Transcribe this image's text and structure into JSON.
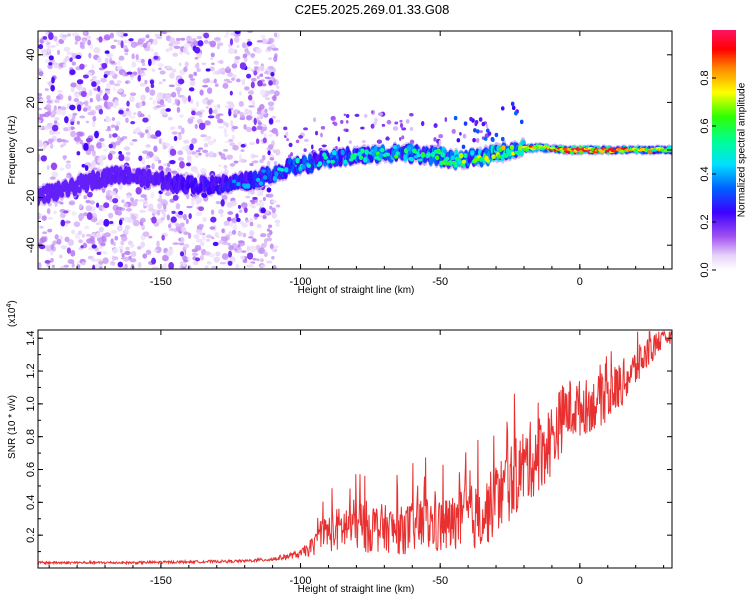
{
  "title": "C2E5.2025.269.01.33.G08",
  "chart_data": [
    {
      "type": "heatmap",
      "name": "spectrogram",
      "title": "C2E5.2025.269.01.33.G08",
      "xlabel": "Height of straight line (km)",
      "ylabel": "Frequency (Hz)",
      "xlim": [
        -194,
        33
      ],
      "ylim": [
        -50,
        50
      ],
      "xticks": [
        -150,
        -100,
        -50,
        0
      ],
      "yticks": [
        -40,
        -20,
        0,
        20,
        40
      ],
      "colorbar": {
        "label": "Normalized spectral amplitude",
        "range": [
          0.0,
          1.0
        ],
        "ticks": [
          "0.0",
          "0.2",
          "0.4",
          "0.6",
          "0.8"
        ],
        "colormap": [
          "#ffffff",
          "#d8b8f4",
          "#8a2be2",
          "#5a00f0",
          "#1020ff",
          "#00d8ff",
          "#00ff80",
          "#40ff00",
          "#ffff00",
          "#ff8000",
          "#ff0000",
          "#ff1060"
        ]
      },
      "ridge": {
        "x": [
          -194,
          -185,
          -175,
          -165,
          -155,
          -145,
          -135,
          -125,
          -115,
          -105,
          -95,
          -85,
          -75,
          -65,
          -55,
          -45,
          -35,
          -25,
          -15,
          -5,
          5,
          15,
          25,
          33
        ],
        "frequency": [
          -19,
          -17,
          -13,
          -10,
          -12,
          -14,
          -15,
          -14,
          -12,
          -8,
          -5,
          -3,
          -2,
          -1,
          -2,
          -4,
          -3,
          0,
          1,
          0,
          0,
          0,
          0,
          0
        ],
        "peak_amplitude": [
          0.2,
          0.18,
          0.2,
          0.22,
          0.22,
          0.25,
          0.3,
          0.35,
          0.4,
          0.45,
          0.5,
          0.55,
          0.55,
          0.6,
          0.6,
          0.65,
          0.7,
          0.75,
          0.9,
          0.95,
          0.95,
          0.9,
          0.8,
          0.7
        ]
      }
    },
    {
      "type": "line",
      "name": "snr",
      "xlabel": "Height of straight line (km)",
      "ylabel": "SNR (10 * v/v)",
      "y_multiplier": "(x10",
      "y_multiplier_exp": "4",
      "y_multiplier_close": ")",
      "xlim": [
        -194,
        33
      ],
      "ylim": [
        0,
        1.45
      ],
      "xticks": [
        -150,
        -100,
        -50,
        0
      ],
      "yticks": [
        0.2,
        0.4,
        0.6,
        0.8,
        1.0,
        1.2,
        1.4
      ],
      "color": "#e83030",
      "series": [
        {
          "name": "SNR",
          "x": [
            -194,
            -180,
            -160,
            -140,
            -120,
            -110,
            -100,
            -95,
            -92,
            -90,
            -85,
            -80,
            -75,
            -70,
            -65,
            -60,
            -55,
            -50,
            -45,
            -40,
            -35,
            -30,
            -25,
            -20,
            -15,
            -10,
            -5,
            0,
            5,
            10,
            15,
            20,
            25,
            30,
            33
          ],
          "baseline": [
            0.03,
            0.03,
            0.03,
            0.035,
            0.04,
            0.05,
            0.08,
            0.12,
            0.2,
            0.18,
            0.2,
            0.22,
            0.2,
            0.2,
            0.18,
            0.2,
            0.22,
            0.2,
            0.22,
            0.25,
            0.25,
            0.35,
            0.45,
            0.55,
            0.62,
            0.72,
            0.9,
            0.92,
            0.95,
            1.0,
            1.08,
            1.18,
            1.3,
            1.38,
            1.4
          ],
          "noise": [
            0.01,
            0.01,
            0.01,
            0.01,
            0.01,
            0.015,
            0.03,
            0.08,
            0.1,
            0.15,
            0.18,
            0.2,
            0.2,
            0.18,
            0.18,
            0.2,
            0.22,
            0.22,
            0.22,
            0.25,
            0.25,
            0.28,
            0.3,
            0.3,
            0.3,
            0.28,
            0.25,
            0.22,
            0.2,
            0.2,
            0.18,
            0.15,
            0.12,
            0.06,
            0.05
          ]
        }
      ]
    }
  ]
}
